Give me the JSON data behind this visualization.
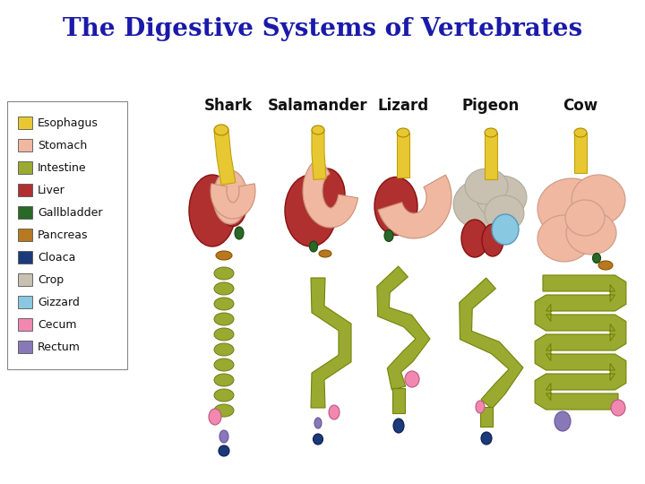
{
  "title": "The Digestive Systems of Vertebrates",
  "title_color": "#1a1aaa",
  "title_fontsize": 20,
  "background_color": "#f0f0f0",
  "panel_color": "#ffffff",
  "columns": [
    "Shark",
    "Salamander",
    "Lizard",
    "Pigeon",
    "Cow"
  ],
  "column_fontsize": 12,
  "legend_items": [
    {
      "label": "Esophagus",
      "color": "#e8c832"
    },
    {
      "label": "Stomach",
      "color": "#f0b8a0"
    },
    {
      "label": "Intestine",
      "color": "#9aaa30"
    },
    {
      "label": "Liver",
      "color": "#b03030"
    },
    {
      "label": "Gallbladder",
      "color": "#2a6828"
    },
    {
      "label": "Pancreas",
      "color": "#b87820"
    },
    {
      "label": "Cloaca",
      "color": "#1a3a7a"
    },
    {
      "label": "Crop",
      "color": "#c8c0b0"
    },
    {
      "label": "Gizzard",
      "color": "#88c8e0"
    },
    {
      "label": "Cecum",
      "color": "#f088b0"
    },
    {
      "label": "Rectum",
      "color": "#8878b8"
    }
  ],
  "colors": {
    "esophagus": "#e8c832",
    "stomach": "#f0b8a0",
    "intestine": "#9aaa30",
    "liver": "#b03030",
    "gallbladder": "#2a6828",
    "pancreas": "#b87820",
    "cloaca": "#1a3a7a",
    "crop": "#c8c0b0",
    "gizzard": "#88c8e0",
    "cecum": "#f088b0",
    "rectum": "#8878b8"
  }
}
